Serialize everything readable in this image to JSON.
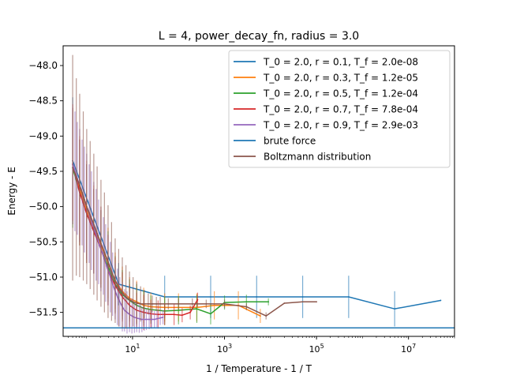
{
  "chart_data": {
    "type": "line",
    "title": "L = 4, power_decay_fn, radius = 3.0",
    "xlabel": "1 / Temperature - 1 / T",
    "ylabel": "Energy - E",
    "xscale": "log",
    "xlim": [
      0.31,
      100000000
    ],
    "ylim": [
      -51.84,
      -47.72
    ],
    "x_ticks": [
      {
        "value": 10,
        "label": "10",
        "exp": "1"
      },
      {
        "value": 1000,
        "label": "10",
        "exp": "3"
      },
      {
        "value": 100000,
        "label": "10",
        "exp": "5"
      },
      {
        "value": 10000000,
        "label": "10",
        "exp": "7"
      }
    ],
    "y_ticks": [
      {
        "value": -48.0,
        "label": "−48.0"
      },
      {
        "value": -48.5,
        "label": "−48.5"
      },
      {
        "value": -49.0,
        "label": "−49.0"
      },
      {
        "value": -49.5,
        "label": "−49.5"
      },
      {
        "value": -50.0,
        "label": "−50.0"
      },
      {
        "value": -50.5,
        "label": "−50.5"
      },
      {
        "value": -51.0,
        "label": "−51.0"
      },
      {
        "value": -51.5,
        "label": "−51.5"
      }
    ],
    "grid": false,
    "legend_position": "top-right",
    "series": [
      {
        "name": "T_0 = 2.0, r = 0.1, T_f = 2.0e-08",
        "color": "#1f77b4",
        "x": [
          0.5,
          5,
          50,
          500,
          5000,
          50000,
          500000,
          5000000,
          50000000
        ],
        "y": [
          -49.35,
          -51.1,
          -51.28,
          -51.28,
          -51.28,
          -51.28,
          -51.28,
          -51.45,
          -51.33
        ],
        "err": [
          0.9,
          0.3,
          0.3,
          0.3,
          0.3,
          0.3,
          0.3,
          0.25,
          0.0
        ]
      },
      {
        "name": "T_0 = 2.0, r = 0.3, T_f = 1.2e-05",
        "color": "#ff7f0e",
        "x": [
          0.5,
          0.71,
          1.01,
          1.44,
          2.06,
          2.94,
          4.2,
          6.0,
          8.6,
          12.3,
          17.5,
          25,
          50,
          100,
          250,
          600,
          2000,
          6000
        ],
        "y": [
          -49.4,
          -49.75,
          -50.05,
          -50.3,
          -50.55,
          -50.8,
          -51.05,
          -51.2,
          -51.3,
          -51.35,
          -51.4,
          -51.42,
          -51.43,
          -51.43,
          -51.43,
          -51.4,
          -51.4,
          -51.55
        ],
        "err": [
          0.85,
          0.75,
          0.7,
          0.6,
          0.55,
          0.5,
          0.4,
          0.35,
          0.3,
          0.3,
          0.25,
          0.2,
          0.2,
          0.2,
          0.2,
          0.2,
          0.2,
          0.1
        ]
      },
      {
        "name": "T_0 = 2.0, r = 0.5, T_f = 1.2e-04",
        "color": "#2ca02c",
        "x": [
          0.5,
          0.71,
          1.01,
          1.44,
          2.06,
          2.94,
          4.2,
          6.0,
          8.6,
          12.3,
          17.5,
          25,
          50,
          100,
          250,
          500,
          1000,
          3000,
          9000
        ],
        "y": [
          -49.45,
          -49.8,
          -50.1,
          -50.35,
          -50.6,
          -50.85,
          -51.1,
          -51.25,
          -51.33,
          -51.4,
          -51.44,
          -51.46,
          -51.48,
          -51.47,
          -51.45,
          -51.52,
          -51.36,
          -51.35,
          -51.35
        ],
        "err": [
          0.85,
          0.75,
          0.7,
          0.6,
          0.55,
          0.5,
          0.4,
          0.35,
          0.3,
          0.3,
          0.25,
          0.2,
          0.2,
          0.2,
          0.2,
          0.15,
          0.1,
          0.1,
          0.05
        ]
      },
      {
        "name": "T_0 = 2.0, r = 0.7, T_f = 7.8e-04",
        "color": "#d62728",
        "x": [
          0.5,
          0.71,
          1.01,
          1.44,
          2.06,
          2.94,
          4.2,
          6.0,
          8.6,
          12.3,
          17.5,
          25,
          36,
          50,
          80,
          120,
          180,
          260
        ],
        "y": [
          -49.4,
          -49.8,
          -50.1,
          -50.35,
          -50.6,
          -50.9,
          -51.12,
          -51.28,
          -51.4,
          -51.47,
          -51.5,
          -51.52,
          -51.53,
          -51.53,
          -51.53,
          -51.54,
          -51.5,
          -51.32
        ],
        "err": [
          0.8,
          0.75,
          0.7,
          0.6,
          0.55,
          0.5,
          0.4,
          0.35,
          0.3,
          0.25,
          0.25,
          0.2,
          0.2,
          0.15,
          0.15,
          0.1,
          0.1,
          0.1
        ]
      },
      {
        "name": "T_0 = 2.0, r = 0.9, T_f = 2.9e-03",
        "color": "#9467bd",
        "x": [
          0.5,
          0.56,
          0.63,
          0.71,
          0.8,
          0.9,
          1.01,
          1.14,
          1.28,
          1.44,
          1.62,
          1.83,
          2.06,
          2.32,
          2.61,
          2.94,
          3.3,
          3.7,
          4.2,
          4.7,
          5.3,
          6.0,
          6.7,
          7.6,
          8.6,
          9.7,
          11,
          12.3,
          14,
          16,
          18,
          20,
          23,
          26,
          30,
          34,
          40,
          46
        ],
        "y": [
          -49.4,
          -49.5,
          -49.6,
          -49.7,
          -49.8,
          -49.9,
          -50.0,
          -50.1,
          -50.2,
          -50.3,
          -50.4,
          -50.5,
          -50.6,
          -50.7,
          -50.8,
          -50.9,
          -51.0,
          -51.1,
          -51.2,
          -51.28,
          -51.35,
          -51.42,
          -51.47,
          -51.5,
          -51.53,
          -51.55,
          -51.57,
          -51.58,
          -51.59,
          -51.6,
          -51.6,
          -51.6,
          -51.6,
          -51.6,
          -51.6,
          -51.59,
          -51.58,
          -51.57
        ],
        "err": [
          0.85,
          0.85,
          0.8,
          0.8,
          0.75,
          0.75,
          0.75,
          0.7,
          0.7,
          0.65,
          0.65,
          0.6,
          0.6,
          0.55,
          0.55,
          0.5,
          0.5,
          0.45,
          0.4,
          0.4,
          0.35,
          0.35,
          0.3,
          0.3,
          0.25,
          0.25,
          0.22,
          0.2,
          0.2,
          0.18,
          0.16,
          0.15,
          0.14,
          0.13,
          0.12,
          0.12,
          0.1,
          0.1
        ]
      },
      {
        "name": "brute force",
        "color": "#1f77b4",
        "kind": "hline",
        "y": -51.72
      },
      {
        "name": "Boltzmann distribution",
        "color": "#8c564b",
        "x": [
          0.5,
          0.6,
          0.71,
          0.85,
          1.01,
          1.2,
          1.44,
          1.7,
          2.06,
          2.45,
          2.94,
          3.5,
          4.2,
          5.0,
          6.0,
          7.2,
          8.6,
          10.3,
          12.3,
          15,
          18,
          22,
          27,
          33,
          40,
          60,
          100,
          200,
          400,
          1000,
          3000,
          8000,
          20000,
          50000,
          100000
        ],
        "y": [
          -49.45,
          -49.58,
          -49.7,
          -49.85,
          -50.0,
          -50.12,
          -50.25,
          -50.38,
          -50.52,
          -50.65,
          -50.78,
          -50.92,
          -51.05,
          -51.15,
          -51.22,
          -51.28,
          -51.32,
          -51.35,
          -51.37,
          -51.38,
          -51.38,
          -51.38,
          -51.38,
          -51.38,
          -51.38,
          -51.38,
          -51.38,
          -51.38,
          -51.38,
          -51.38,
          -51.42,
          -51.55,
          -51.37,
          -51.35,
          -51.35
        ],
        "err": [
          1.6,
          1.4,
          1.3,
          1.2,
          1.1,
          1.05,
          1.0,
          0.95,
          0.9,
          0.85,
          0.8,
          0.7,
          0.6,
          0.55,
          0.5,
          0.45,
          0.4,
          0.35,
          0.3,
          0.25,
          0.2,
          0.15,
          0.12,
          0.1,
          0.1,
          0.08,
          0.08,
          0.08,
          0.06,
          0.06,
          0.05,
          0.05,
          0.0,
          0.0,
          0.0
        ]
      }
    ]
  }
}
